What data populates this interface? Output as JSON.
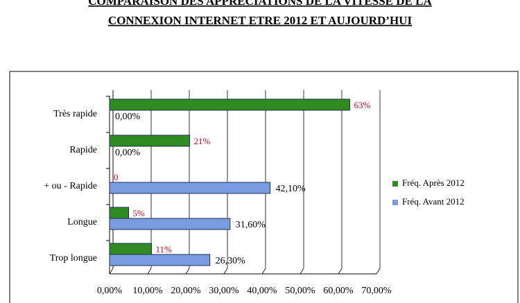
{
  "chart_data": {
    "type": "bar",
    "orientation": "horizontal",
    "title": "COMPARAISON DES APPRECIATIONS DE LA VITESSE DE LA",
    "subtitle": "CONNEXION INTERNET ETRE 2012 ET AUJOURD’HUI",
    "categories": [
      "Très rapide",
      "Rapide",
      "+ ou - Rapide",
      "Longue",
      "Trop longue"
    ],
    "series": [
      {
        "name": "Fréq. Après 2012",
        "color": "#2f8a1f",
        "label_color": "#e0001a",
        "values": [
          63,
          21,
          0,
          5,
          11
        ],
        "value_labels": [
          "63%",
          "21%",
          "0",
          "5%",
          "11%"
        ]
      },
      {
        "name": "Fréq. Avant 2012",
        "color": "#7b9be0",
        "label_color": "#000000",
        "values": [
          0,
          0,
          42.1,
          31.6,
          26.3
        ],
        "value_labels": [
          "0,00%",
          "0,00%",
          "42,10%",
          "31,60%",
          "26,30%"
        ]
      }
    ],
    "xlim": [
      0,
      70
    ],
    "xticks": [
      {
        "value": 0,
        "label": "0,00%"
      },
      {
        "value": 10,
        "label": "10,00%"
      },
      {
        "value": 20,
        "label": "20,00%"
      },
      {
        "value": 30,
        "label": "30,00%"
      },
      {
        "value": 40,
        "label": "40,00%"
      },
      {
        "value": 50,
        "label": "50,00%"
      },
      {
        "value": 60,
        "label": "60,00%"
      },
      {
        "value": 70,
        "label": "70,00%"
      }
    ],
    "grid": true,
    "legend": "right"
  }
}
